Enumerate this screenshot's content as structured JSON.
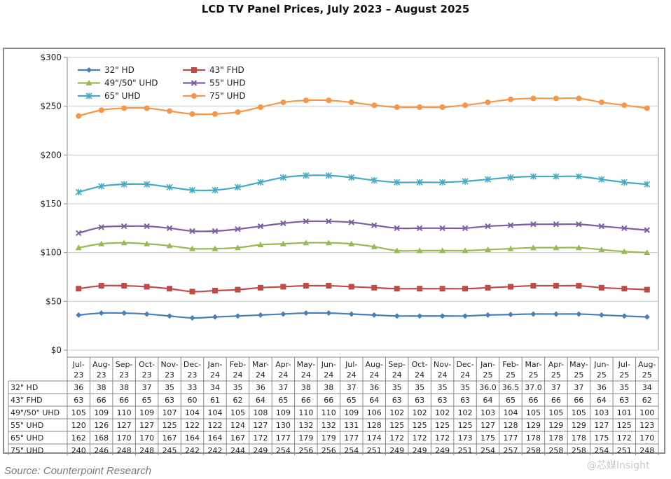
{
  "title": "LCD TV Panel Prices, July 2023 – August 2025",
  "source": "Source: Counterpoint Research",
  "watermark": "@芯媒Insight",
  "chart_data": {
    "type": "line",
    "title": "LCD TV Panel Prices, July 2023 – August 2025",
    "categories": [
      "Jul-23",
      "Aug-23",
      "Sep-23",
      "Oct-23",
      "Nov-23",
      "Dec-23",
      "Jan-24",
      "Feb-24",
      "Mar-24",
      "Apr-24",
      "May-24",
      "Jun-24",
      "Jul-24",
      "Aug-24",
      "Sep-24",
      "Oct-24",
      "Nov-24",
      "Dec-24",
      "Jan-25",
      "Feb-25",
      "Mar-25",
      "Apr-25",
      "May-25",
      "Jun-25",
      "Jul-25",
      "Aug-25"
    ],
    "y_tick_labels": [
      "$0",
      "$50",
      "$100",
      "$150",
      "$200",
      "$250",
      "$300"
    ],
    "ylim": [
      0,
      300
    ],
    "grid": true,
    "legend_position": "top-left",
    "series": [
      {
        "name": "32\" HD",
        "color": "#4a7ebb",
        "marker": "diamond",
        "values": [
          36,
          38,
          38,
          37,
          35,
          33,
          34,
          35,
          36,
          37,
          38,
          38,
          37,
          36,
          35,
          35,
          35,
          35,
          36.0,
          36.5,
          37.0,
          37,
          37,
          36,
          35,
          34
        ],
        "labels": [
          "36",
          "38",
          "38",
          "37",
          "35",
          "33",
          "34",
          "35",
          "36",
          "37",
          "38",
          "38",
          "37",
          "36",
          "35",
          "35",
          "35",
          "35",
          "36.0",
          "36.5",
          "37.0",
          "37",
          "37",
          "36",
          "35",
          "34"
        ]
      },
      {
        "name": "43\" FHD",
        "color": "#be4b48",
        "marker": "square",
        "values": [
          63,
          66,
          66,
          65,
          63,
          60,
          61,
          62,
          64,
          65,
          66,
          66,
          65,
          64,
          63,
          63,
          63,
          63,
          64,
          65,
          66,
          66,
          66,
          64,
          63,
          62
        ],
        "labels": [
          "63",
          "66",
          "66",
          "65",
          "63",
          "60",
          "61",
          "62",
          "64",
          "65",
          "66",
          "66",
          "65",
          "64",
          "63",
          "63",
          "63",
          "63",
          "64",
          "65",
          "66",
          "66",
          "66",
          "64",
          "63",
          "62"
        ]
      },
      {
        "name": "49\"/50\" UHD",
        "color": "#98b954",
        "marker": "triangle",
        "values": [
          105,
          109,
          110,
          109,
          107,
          104,
          104,
          105,
          108,
          109,
          110,
          110,
          109,
          106,
          102,
          102,
          102,
          102,
          103,
          104,
          105,
          105,
          105,
          103,
          101,
          100
        ],
        "labels": [
          "105",
          "109",
          "110",
          "109",
          "107",
          "104",
          "104",
          "105",
          "108",
          "109",
          "110",
          "110",
          "109",
          "106",
          "102",
          "102",
          "102",
          "102",
          "103",
          "104",
          "105",
          "105",
          "105",
          "103",
          "101",
          "100"
        ]
      },
      {
        "name": "55\" UHD",
        "color": "#7d5fa0",
        "marker": "x",
        "values": [
          120,
          126,
          127,
          127,
          125,
          122,
          122,
          124,
          127,
          130,
          132,
          132,
          131,
          128,
          125,
          125,
          125,
          125,
          127,
          128,
          129,
          129,
          129,
          127,
          125,
          123
        ],
        "labels": [
          "120",
          "126",
          "127",
          "127",
          "125",
          "122",
          "122",
          "124",
          "127",
          "130",
          "132",
          "132",
          "131",
          "128",
          "125",
          "125",
          "125",
          "125",
          "127",
          "128",
          "129",
          "129",
          "129",
          "127",
          "125",
          "123"
        ]
      },
      {
        "name": "65\" UHD",
        "color": "#46aac5",
        "marker": "star",
        "values": [
          162,
          168,
          170,
          170,
          167,
          164,
          164,
          167,
          172,
          177,
          179,
          179,
          177,
          174,
          172,
          172,
          172,
          173,
          175,
          177,
          178,
          178,
          178,
          175,
          172,
          170
        ],
        "labels": [
          "162",
          "168",
          "170",
          "170",
          "167",
          "164",
          "164",
          "167",
          "172",
          "177",
          "179",
          "179",
          "177",
          "174",
          "172",
          "172",
          "172",
          "173",
          "175",
          "177",
          "178",
          "178",
          "178",
          "175",
          "172",
          "170"
        ]
      },
      {
        "name": "75\" UHD",
        "color": "#f79646",
        "marker": "circle",
        "values": [
          240,
          246,
          248,
          248,
          245,
          242,
          242,
          244,
          249,
          254,
          256,
          256,
          254,
          251,
          249,
          249,
          249,
          251,
          254,
          257,
          258,
          258,
          258,
          254,
          251,
          248
        ],
        "labels": [
          "240",
          "246",
          "248",
          "248",
          "245",
          "242",
          "242",
          "244",
          "249",
          "254",
          "256",
          "256",
          "254",
          "251",
          "249",
          "249",
          "249",
          "251",
          "254",
          "257",
          "258",
          "258",
          "258",
          "254",
          "251",
          "248"
        ]
      }
    ]
  }
}
